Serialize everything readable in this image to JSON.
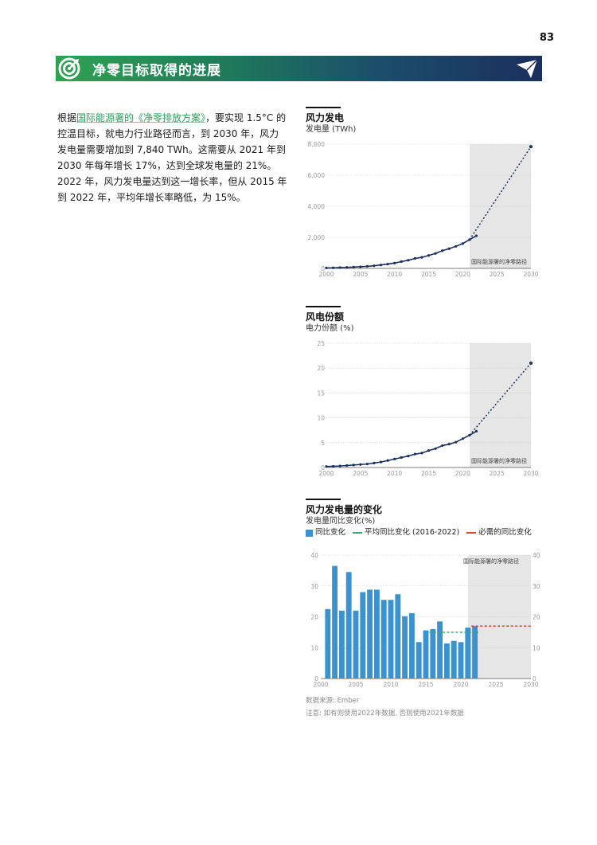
{
  "page_number": "83",
  "banner": {
    "title": "净零目标取得的进展"
  },
  "intro": {
    "before_link": "根据",
    "link": "国际能源署的《净零排放方案》",
    "after_link": "，要实现 1.5°C 的控温目标，就电力行业路径而言，到 2030 年，风力发电量需要增加到 7,840 TWh。这需要从 2021 年到 2030 年每年增长 17%，达到全球发电量的 21%。2022 年，风力发电量达到这一增长率，但从 2015 年到 2022 年，平均年增长率略低，为 15%。"
  },
  "colors": {
    "banner_green": "#2fa352",
    "banner_navy": "#1b2f5e",
    "line": "#1b2f5e",
    "bar": "#3a93cf",
    "avg_line": "#3aaa73",
    "required_line": "#d24a2a",
    "shade": "#e6e6e6"
  },
  "charts": {
    "gen": {
      "title": "风力发电",
      "subtitle": "发电量 (TWh)",
      "shade_label": "国际能源署的净零路径"
    },
    "share": {
      "title": "风电份额",
      "subtitle": "电力份额 (%)",
      "shade_label": "国际能源署的净零路径"
    },
    "growth": {
      "title": "风力发电量的变化",
      "subtitle": "发电量同比变化(%)",
      "legend_bar": "同比变化",
      "legend_avg": "平均同比变化 (2016-2022)",
      "legend_req": "必需的同比变化",
      "shade_label": "国际能源署的净零路径"
    }
  },
  "notes": {
    "source": "数据来源: Ember",
    "note": "注意: 如有则使用2022年数据, 否则使用2021年数据"
  },
  "chart_data": [
    {
      "type": "line",
      "title": "风力发电",
      "ylabel": "发电量 (TWh)",
      "xlim": [
        2000,
        2030
      ],
      "ylim": [
        0,
        8000
      ],
      "x_ticks": [
        2000,
        2005,
        2010,
        2015,
        2020,
        2025,
        2030
      ],
      "y_ticks": [
        0,
        2000,
        4000,
        6000,
        8000
      ],
      "y_tick_labels": [
        "0",
        "2,000",
        "4,000",
        "6,000",
        "8,000"
      ],
      "shade_range": [
        2021,
        2030
      ],
      "shade_label": "国际能源署的净零路径",
      "series": [
        {
          "x": [
            2000,
            2001,
            2002,
            2003,
            2004,
            2005,
            2006,
            2007,
            2008,
            2009,
            2010,
            2011,
            2012,
            2013,
            2014,
            2015,
            2016,
            2017,
            2018,
            2019,
            2020,
            2021,
            2022
          ],
          "y": [
            31,
            38,
            52,
            63,
            85,
            104,
            133,
            170,
            221,
            277,
            342,
            437,
            523,
            640,
            713,
            833,
            960,
            1141,
            1270,
            1420,
            1597,
            1848,
            2100
          ]
        }
      ],
      "projection": {
        "x": [
          2021,
          2030
        ],
        "y": [
          1848,
          7840
        ]
      }
    },
    {
      "type": "line",
      "title": "风电份额",
      "ylabel": "电力份额 (%)",
      "xlim": [
        2000,
        2030
      ],
      "ylim": [
        0,
        25
      ],
      "x_ticks": [
        2000,
        2005,
        2010,
        2015,
        2020,
        2025,
        2030
      ],
      "y_ticks": [
        0,
        5,
        10,
        15,
        20,
        25
      ],
      "y_tick_labels": [
        "0",
        "5",
        "10",
        "15",
        "20",
        "25"
      ],
      "shade_range": [
        2021,
        2030
      ],
      "shade_label": "国际能源署的净零路径",
      "series": [
        {
          "x": [
            2000,
            2001,
            2002,
            2003,
            2004,
            2005,
            2006,
            2007,
            2008,
            2009,
            2010,
            2011,
            2012,
            2013,
            2014,
            2015,
            2016,
            2017,
            2018,
            2019,
            2020,
            2021,
            2022
          ],
          "y": [
            0.2,
            0.25,
            0.3,
            0.4,
            0.5,
            0.6,
            0.7,
            0.9,
            1.1,
            1.4,
            1.7,
            2.0,
            2.3,
            2.7,
            2.9,
            3.4,
            3.8,
            4.4,
            4.7,
            5.1,
            5.8,
            6.5,
            7.3
          ]
        }
      ],
      "projection": {
        "x": [
          2021,
          2030
        ],
        "y": [
          6.5,
          21
        ]
      }
    },
    {
      "type": "bar",
      "title": "风力发电量的变化",
      "ylabel": "发电量同比变化(%)",
      "xlim": [
        2000,
        2030
      ],
      "ylim": [
        0,
        40
      ],
      "x_ticks": [
        2000,
        2005,
        2010,
        2015,
        2020,
        2025,
        2030
      ],
      "y_ticks": [
        0,
        10,
        20,
        30,
        40
      ],
      "y_tick_labels": [
        "0",
        "10",
        "20",
        "30",
        "40"
      ],
      "shade_range": [
        2021,
        2030
      ],
      "shade_label": "国际能源署的净零路径",
      "series": [
        {
          "name": "同比变化",
          "x": [
            2001,
            2002,
            2003,
            2004,
            2005,
            2006,
            2007,
            2008,
            2009,
            2010,
            2011,
            2012,
            2013,
            2014,
            2015,
            2016,
            2017,
            2018,
            2019,
            2020,
            2021,
            2022
          ],
          "y": [
            22.5,
            36.5,
            22,
            34.5,
            22,
            28,
            28.8,
            28.8,
            25.5,
            25.5,
            27.3,
            20.2,
            21.2,
            11.8,
            15.6,
            16,
            18.5,
            11.4,
            12.2,
            11.8,
            16.5,
            17
          ]
        },
        {
          "name": "平均同比变化 (2016-2022)",
          "x": [
            2015.5,
            2022.5
          ],
          "y": [
            15,
            15
          ]
        },
        {
          "name": "必需的同比变化",
          "x": [
            2021.5,
            2030
          ],
          "y": [
            17,
            17
          ]
        }
      ]
    }
  ]
}
